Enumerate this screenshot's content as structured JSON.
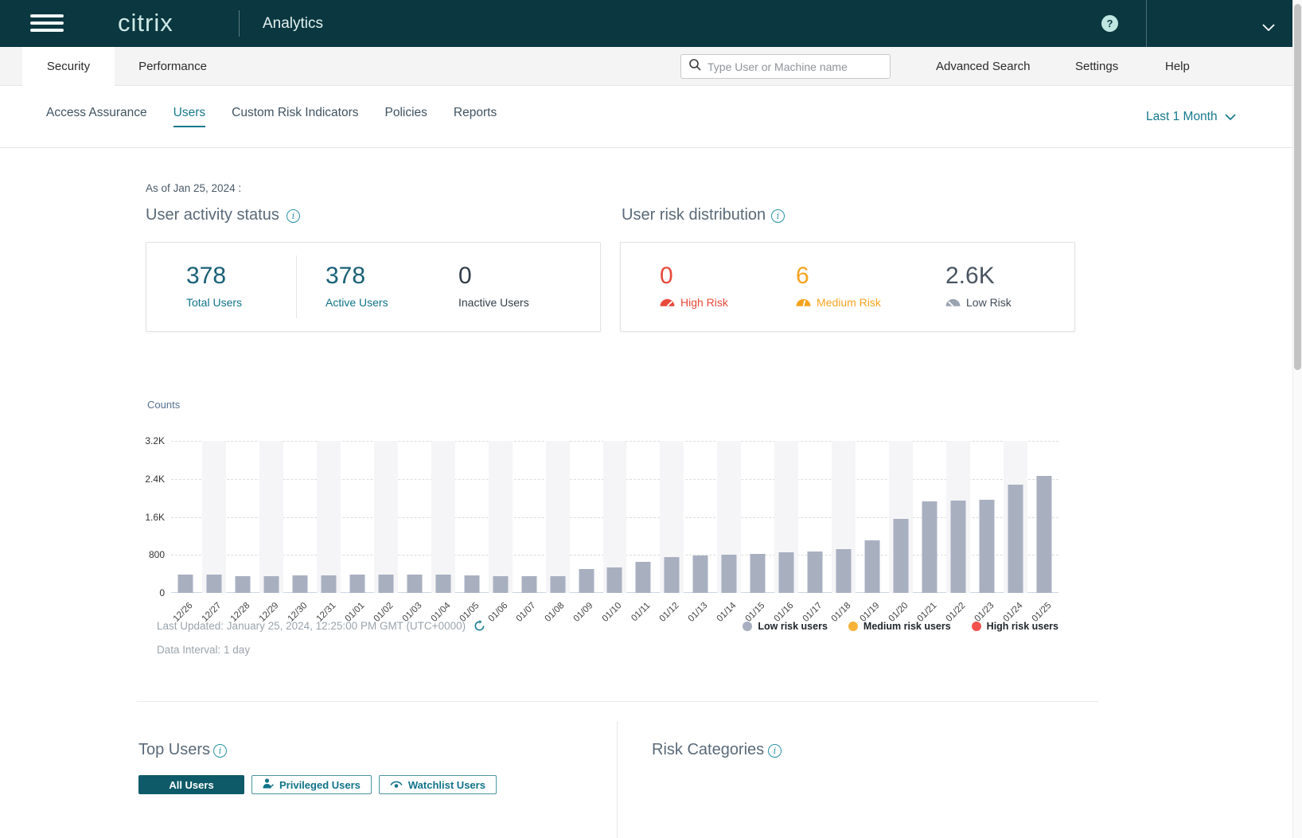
{
  "icons": {
    "help": "?",
    "info": "i"
  },
  "header": {
    "brand": "citrix",
    "product": "Analytics"
  },
  "toolbar": {
    "tabs": [
      {
        "label": "Security",
        "active": true
      },
      {
        "label": "Performance",
        "active": false
      }
    ],
    "search_placeholder": "Type User or Machine name",
    "links": [
      "Advanced Search",
      "Settings",
      "Help"
    ]
  },
  "subnav": {
    "items": [
      {
        "label": "Access Assurance",
        "active": false
      },
      {
        "label": "Users",
        "active": true
      },
      {
        "label": "Custom Risk Indicators",
        "active": false
      },
      {
        "label": "Policies",
        "active": false
      },
      {
        "label": "Reports",
        "active": false
      }
    ],
    "time_range": "Last 1 Month"
  },
  "content": {
    "as_of": "As of Jan 25, 2024 :",
    "activity_title": "User activity status",
    "activity_metrics": [
      {
        "value": "378",
        "label": "Total Users",
        "variant": "teal"
      },
      {
        "value": "378",
        "label": "Active Users",
        "variant": "teal"
      },
      {
        "value": "0",
        "label": "Inactive Users",
        "variant": "dark"
      }
    ],
    "risk_title": "User risk distribution",
    "risk_metrics": [
      {
        "value": "0",
        "label": "High Risk",
        "variant": "high",
        "color": "#e8493a"
      },
      {
        "value": "6",
        "label": "Medium Risk",
        "variant": "medium",
        "color": "#f5a31f"
      },
      {
        "value": "2.6K",
        "label": "Low Risk",
        "variant": "low",
        "color": "#9aa3b0"
      }
    ],
    "last_updated": "Last Updated: January 25, 2024, 12:25:00 PM GMT (UTC+0000)",
    "data_interval": "Data Interval: 1 day",
    "legend": [
      {
        "label": "Low risk users",
        "color": "#a8b0c0"
      },
      {
        "label": "Medium risk users",
        "color": "#f8b239"
      },
      {
        "label": "High risk users",
        "color": "#f4524d"
      }
    ],
    "top_users_title": "Top Users",
    "top_users_buttons": [
      {
        "label": "All Users",
        "active": true,
        "icon": null
      },
      {
        "label": "Privileged Users",
        "active": false,
        "icon": "privileged-user-icon"
      },
      {
        "label": "Watchlist Users",
        "active": false,
        "icon": "watchlist-eye-icon"
      }
    ],
    "risk_categories_title": "Risk Categories"
  },
  "chart_data": {
    "type": "bar",
    "ylabel": "Counts",
    "categories": [
      "12/26",
      "12/27",
      "12/28",
      "12/29",
      "12/30",
      "12/31",
      "01/01",
      "01/02",
      "01/03",
      "01/04",
      "01/05",
      "01/06",
      "01/07",
      "01/08",
      "01/09",
      "01/10",
      "01/11",
      "01/12",
      "01/13",
      "01/14",
      "01/15",
      "01/16",
      "01/17",
      "01/18",
      "01/19",
      "01/20",
      "01/21",
      "01/22",
      "01/23",
      "01/24",
      "01/25"
    ],
    "series": [
      {
        "name": "Low risk users",
        "values": [
          380,
          380,
          360,
          360,
          370,
          370,
          380,
          380,
          380,
          380,
          370,
          350,
          360,
          360,
          500,
          540,
          650,
          750,
          780,
          800,
          820,
          850,
          870,
          920,
          1100,
          1560,
          1920,
          1940,
          1960,
          2280,
          2460
        ]
      }
    ],
    "legend": [
      "Low risk users",
      "Medium risk users",
      "High risk users"
    ],
    "legend_position": "bottom-right",
    "ylim": [
      0,
      3200
    ],
    "yticks": [
      "0",
      "800",
      "1.6K",
      "2.4K",
      "3.2K"
    ],
    "grid": "horizontal-dashed",
    "x_tick_rotation": 45,
    "bar_color": "#a8b0c0",
    "alternating_column_stripes": true
  }
}
